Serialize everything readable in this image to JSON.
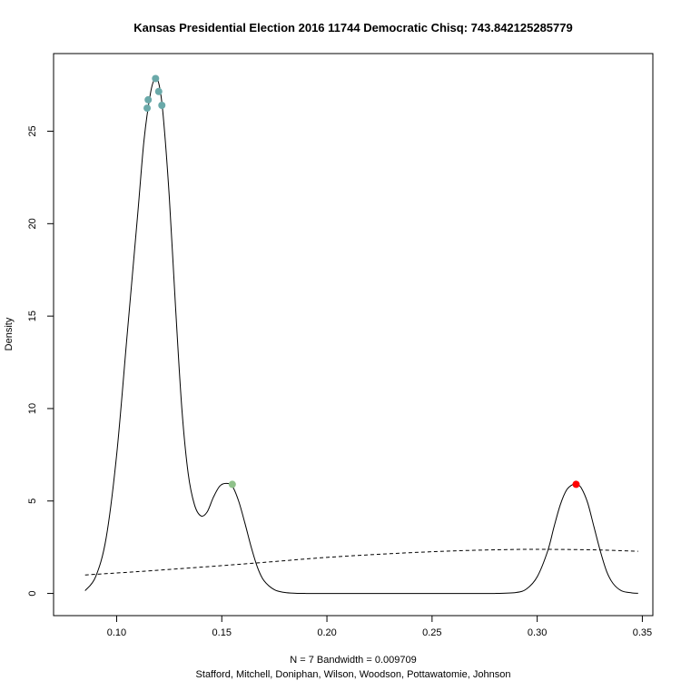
{
  "chart_data": {
    "type": "line",
    "title": "Kansas Presidential Election 2016 11744 Democratic Chisq: 743.842125285779",
    "xlabel": "N = 7   Bandwidth = 0.009709",
    "subtitle": "Stafford, Mitchell, Doniphan, Wilson, Woodson, Pottawatomie, Johnson",
    "ylabel": "Density",
    "xlim": [
      0.07,
      0.355
    ],
    "ylim": [
      -1.2,
      29.2
    ],
    "x_ticks": [
      0.1,
      0.15,
      0.2,
      0.25,
      0.3,
      0.35
    ],
    "x_tick_labels": [
      "0.10",
      "0.15",
      "0.20",
      "0.25",
      "0.30",
      "0.35"
    ],
    "y_ticks": [
      0,
      5,
      10,
      15,
      20,
      25
    ],
    "y_tick_labels": [
      "0",
      "5",
      "10",
      "15",
      "20",
      "25"
    ],
    "grid": false,
    "series": [
      {
        "style": "solid",
        "color": "#000000",
        "x": [
          0.085,
          0.09,
          0.095,
          0.1,
          0.105,
          0.11,
          0.113,
          0.116,
          0.118,
          0.12,
          0.122,
          0.125,
          0.128,
          0.131,
          0.134,
          0.137,
          0.14,
          0.143,
          0.146,
          0.149,
          0.152,
          0.155,
          0.158,
          0.161,
          0.164,
          0.167,
          0.17,
          0.175,
          0.18,
          0.185,
          0.19,
          0.2,
          0.25,
          0.28,
          0.29,
          0.295,
          0.3,
          0.305,
          0.308,
          0.311,
          0.314,
          0.317,
          0.319,
          0.321,
          0.324,
          0.327,
          0.33,
          0.333,
          0.336,
          0.34,
          0.345,
          0.348
        ],
        "y": [
          0.15,
          0.9,
          3.0,
          7.5,
          14.0,
          20.5,
          24.5,
          27.0,
          27.8,
          27.6,
          26.0,
          21.5,
          15.5,
          10.0,
          6.5,
          4.8,
          4.2,
          4.4,
          5.2,
          5.8,
          5.95,
          5.8,
          5.0,
          3.8,
          2.5,
          1.4,
          0.7,
          0.2,
          0.05,
          0.01,
          0.0,
          0.0,
          0.0,
          0.0,
          0.05,
          0.25,
          0.9,
          2.3,
          3.6,
          4.8,
          5.6,
          5.9,
          5.9,
          5.7,
          4.9,
          3.6,
          2.3,
          1.2,
          0.55,
          0.15,
          0.03,
          0.01
        ]
      },
      {
        "style": "dashed",
        "color": "#000000",
        "x": [
          0.085,
          0.11,
          0.14,
          0.17,
          0.2,
          0.23,
          0.26,
          0.29,
          0.31,
          0.33,
          0.348
        ],
        "y": [
          1.0,
          1.18,
          1.42,
          1.68,
          1.95,
          2.15,
          2.3,
          2.38,
          2.38,
          2.35,
          2.28
        ]
      }
    ],
    "points": [
      {
        "x": 0.1185,
        "y": 27.85,
        "color": "#6aa9a9"
      },
      {
        "x": 0.12,
        "y": 27.15,
        "color": "#6aa9a9"
      },
      {
        "x": 0.115,
        "y": 26.7,
        "color": "#6aa9a9"
      },
      {
        "x": 0.1215,
        "y": 26.4,
        "color": "#6aa9a9"
      },
      {
        "x": 0.1145,
        "y": 26.25,
        "color": "#6aa9a9"
      },
      {
        "x": 0.155,
        "y": 5.9,
        "color": "#8fc18a"
      },
      {
        "x": 0.3185,
        "y": 5.9,
        "color": "#ff0000"
      }
    ]
  }
}
